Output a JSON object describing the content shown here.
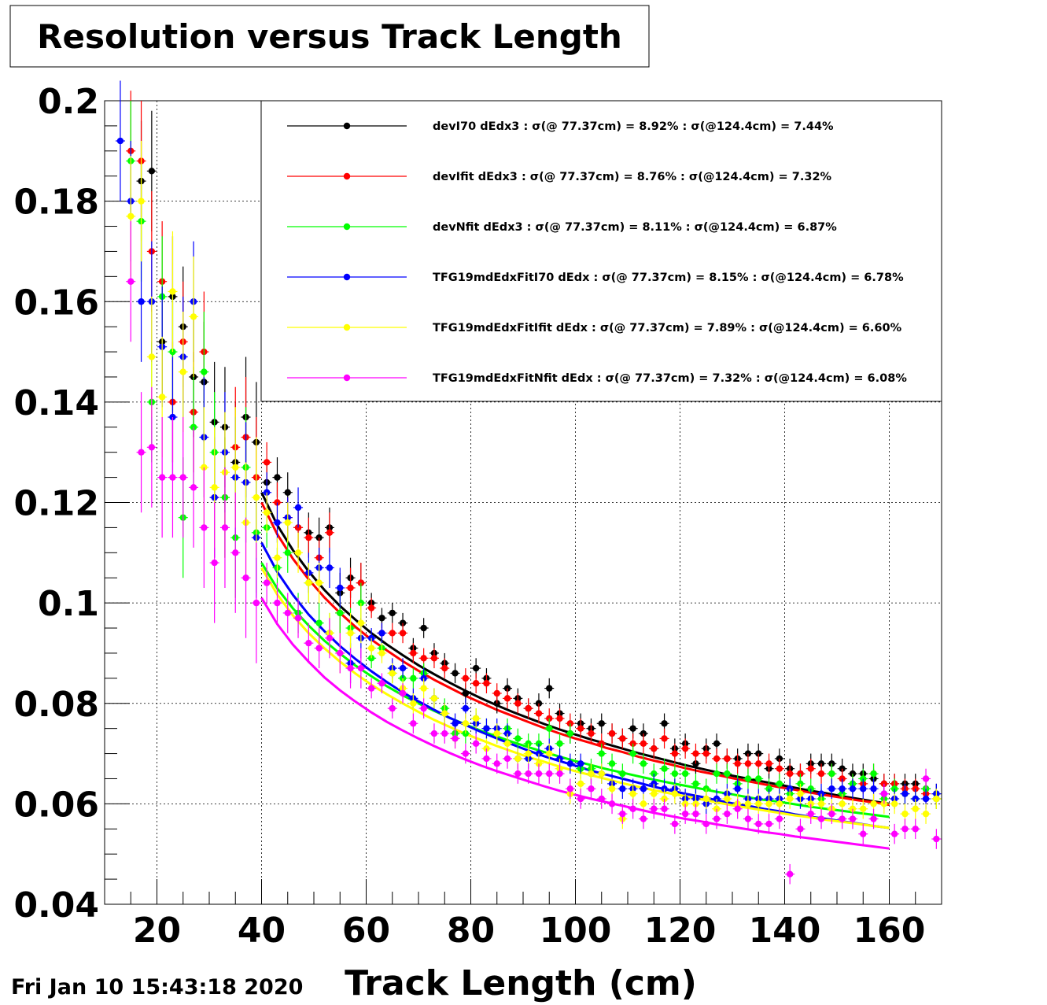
{
  "timestamp": "Fri Jan 10 15:43:18 2020",
  "chart_data": {
    "type": "scatter",
    "title": "Resolution versus Track Length",
    "xlabel": "Track Length (cm)",
    "ylabel": "",
    "xlim": [
      10,
      170
    ],
    "ylim": [
      0.04,
      0.2
    ],
    "xticks": [
      "20",
      "40",
      "60",
      "80",
      "100",
      "120",
      "140",
      "160"
    ],
    "yticks": [
      "0.04",
      "0.06",
      "0.08",
      "0.1",
      "0.12",
      "0.14",
      "0.16",
      "0.18",
      "0.2"
    ],
    "grid": true,
    "legend_position": "top-right",
    "x": [
      13,
      15,
      17,
      19,
      21,
      23,
      25,
      27,
      29,
      31,
      33,
      35,
      37,
      39,
      41,
      43,
      45,
      47,
      49,
      51,
      53,
      55,
      57,
      59,
      61,
      63,
      65,
      67,
      69,
      71,
      73,
      75,
      77,
      79,
      81,
      83,
      85,
      87,
      89,
      91,
      93,
      95,
      97,
      99,
      101,
      103,
      105,
      107,
      109,
      111,
      113,
      115,
      117,
      119,
      121,
      123,
      125,
      127,
      129,
      131,
      133,
      135,
      137,
      139,
      141,
      143,
      145,
      147,
      149,
      151,
      153,
      155,
      157,
      159,
      161,
      163,
      165,
      167,
      169
    ],
    "series": [
      {
        "name": "devI70  dEdx3 : σ(@ 77.37cm) =  8.92% : σ(@124.4cm) =  7.44%",
        "color": "#000000",
        "values": [
          null,
          null,
          0.184,
          0.186,
          0.152,
          0.161,
          0.155,
          0.145,
          0.144,
          0.136,
          0.135,
          0.128,
          0.137,
          0.132,
          0.124,
          0.125,
          0.122,
          0.115,
          0.114,
          0.113,
          0.115,
          0.102,
          0.105,
          0.104,
          0.1,
          0.097,
          0.098,
          0.096,
          0.091,
          0.095,
          0.09,
          0.088,
          0.086,
          0.082,
          0.087,
          0.085,
          0.08,
          0.083,
          0.081,
          0.079,
          0.08,
          0.083,
          0.078,
          0.074,
          0.076,
          0.075,
          0.076,
          0.074,
          0.073,
          0.075,
          0.074,
          0.071,
          0.076,
          0.071,
          0.072,
          0.068,
          0.071,
          0.072,
          0.069,
          0.069,
          0.07,
          0.07,
          0.067,
          0.069,
          0.067,
          0.066,
          0.068,
          0.068,
          0.068,
          0.067,
          0.066,
          0.066,
          0.065,
          0.064,
          0.064,
          0.064,
          0.064,
          0.063,
          0.062
        ],
        "fit": [
          0.122,
          0.1155,
          0.1105,
          0.1063,
          0.1026,
          0.0994,
          0.0966,
          0.094,
          0.0917,
          0.0896,
          0.0876,
          0.0858,
          0.0841,
          0.0825,
          0.081,
          0.0796,
          0.0783,
          0.0771,
          0.0759,
          0.0748,
          0.0738,
          0.0728,
          0.0719,
          0.071,
          0.0701,
          0.0693,
          0.0685,
          0.0677,
          0.067,
          0.0663,
          0.0656,
          0.065,
          0.0644,
          0.0638,
          0.0632,
          0.0626,
          0.0621,
          0.0615,
          0.061,
          0.0605,
          0.06
        ]
      },
      {
        "name": "devIfit dEdx3 : σ(@ 77.37cm) =  8.76% : σ(@124.4cm) =  7.32%",
        "color": "#ff0000",
        "values": [
          null,
          0.19,
          0.188,
          0.17,
          0.164,
          0.14,
          0.152,
          0.138,
          0.15,
          0.121,
          0.121,
          0.131,
          0.133,
          0.125,
          0.128,
          0.12,
          0.117,
          0.115,
          0.113,
          0.109,
          0.114,
          0.098,
          0.103,
          0.104,
          0.099,
          0.094,
          0.094,
          0.094,
          0.09,
          0.089,
          0.089,
          0.087,
          0.074,
          0.085,
          0.084,
          0.084,
          0.082,
          0.081,
          0.08,
          0.079,
          0.078,
          0.077,
          0.077,
          0.076,
          0.075,
          0.074,
          0.072,
          0.074,
          0.073,
          0.072,
          0.072,
          0.071,
          0.073,
          0.07,
          0.071,
          0.07,
          0.07,
          0.069,
          0.069,
          0.068,
          0.068,
          0.068,
          0.068,
          0.067,
          0.066,
          0.066,
          0.067,
          0.066,
          0.066,
          0.065,
          0.064,
          0.064,
          0.066,
          0.064,
          0.064,
          0.063,
          0.063,
          0.062,
          0.061
        ],
        "fit": [
          0.12,
          0.1137,
          0.1088,
          0.1047,
          0.1011,
          0.098,
          0.0952,
          0.0927,
          0.0905,
          0.0884,
          0.0865,
          0.0847,
          0.0831,
          0.0815,
          0.0801,
          0.0787,
          0.0775,
          0.0763,
          0.0751,
          0.074,
          0.073,
          0.0721,
          0.0711,
          0.0703,
          0.0694,
          0.0686,
          0.0679,
          0.0671,
          0.0664,
          0.0658,
          0.0651,
          0.0645,
          0.0639,
          0.0633,
          0.0628,
          0.0622,
          0.0617,
          0.0612,
          0.0607,
          0.0603,
          0.0598
        ]
      },
      {
        "name": "devNfit dEdx3 : σ(@ 77.37cm) =  8.11% : σ(@124.4cm) =  6.87%",
        "color": "#00ff00",
        "values": [
          null,
          0.188,
          0.176,
          0.14,
          0.161,
          0.15,
          0.117,
          0.135,
          0.146,
          0.13,
          0.121,
          0.113,
          0.127,
          0.114,
          0.115,
          0.107,
          0.11,
          0.098,
          0.104,
          0.096,
          0.094,
          0.098,
          0.095,
          0.1,
          0.089,
          0.091,
          0.086,
          0.085,
          0.085,
          0.086,
          0.081,
          0.079,
          0.074,
          0.074,
          0.077,
          0.075,
          0.074,
          0.075,
          0.073,
          0.072,
          0.072,
          0.075,
          0.072,
          0.074,
          0.067,
          0.067,
          0.07,
          0.068,
          0.066,
          0.07,
          0.068,
          0.066,
          0.067,
          0.066,
          0.066,
          0.064,
          0.063,
          0.066,
          0.066,
          0.064,
          0.065,
          0.065,
          0.063,
          0.064,
          0.062,
          0.064,
          0.063,
          0.061,
          0.066,
          0.062,
          0.064,
          0.065,
          0.066,
          0.061,
          0.063,
          0.062,
          0.061,
          0.063,
          0.061
        ],
        "fit": [
          0.108,
          0.1029,
          0.0989,
          0.0955,
          0.0925,
          0.0899,
          0.0875,
          0.0854,
          0.0834,
          0.0816,
          0.08,
          0.0785,
          0.0771,
          0.0758,
          0.0745,
          0.0734,
          0.0723,
          0.0713,
          0.0703,
          0.0694,
          0.0685,
          0.0677,
          0.0669,
          0.0662,
          0.0655,
          0.0648,
          0.0642,
          0.0636,
          0.063,
          0.0624,
          0.0619,
          0.0613,
          0.0608,
          0.0604,
          0.0599,
          0.0594,
          0.059,
          0.0586,
          0.0582,
          0.0578,
          0.0574
        ]
      },
      {
        "name": "TFG19mdEdxFitI70  dEdx : σ(@ 77.37cm) =  8.15% : σ(@124.4cm) =  6.78%",
        "color": "#0000ff",
        "values": [
          0.192,
          0.18,
          0.16,
          0.16,
          0.151,
          0.137,
          0.149,
          0.16,
          0.133,
          0.121,
          0.13,
          0.125,
          0.124,
          0.113,
          0.122,
          0.116,
          0.117,
          0.119,
          0.106,
          0.107,
          0.107,
          0.103,
          0.088,
          0.093,
          0.093,
          0.094,
          0.087,
          0.087,
          0.081,
          0.085,
          0.081,
          0.078,
          0.076,
          0.079,
          0.076,
          0.075,
          0.075,
          0.074,
          0.069,
          0.069,
          0.07,
          0.071,
          0.069,
          0.068,
          0.068,
          0.066,
          0.066,
          0.064,
          0.063,
          0.063,
          0.063,
          0.064,
          0.063,
          0.063,
          0.061,
          0.061,
          0.06,
          0.061,
          0.062,
          0.063,
          0.061,
          0.061,
          0.061,
          0.061,
          0.063,
          0.061,
          0.061,
          0.062,
          0.063,
          0.063,
          0.063,
          0.063,
          0.063,
          0.062,
          0.061,
          0.062,
          0.061,
          0.061,
          0.062
        ],
        "fit": [
          0.112,
          0.1062,
          0.1016,
          0.0977,
          0.0944,
          0.0914,
          0.0888,
          0.0864,
          0.0842,
          0.0822,
          0.0804,
          0.0787,
          0.0771,
          0.0757,
          0.0743,
          0.073,
          0.0718,
          0.0706,
          0.0695,
          0.0685,
          0.0676,
          0.0666,
          0.0658,
          0.065,
          0.0642,
          0.0634,
          0.0627,
          0.062,
          0.0614,
          0.0607,
          0.0601,
          0.0596,
          0.059,
          0.0585,
          0.0579,
          0.0574,
          0.057,
          0.0565,
          0.0561,
          0.0556,
          0.0552
        ]
      },
      {
        "name": "TFG19mdEdxFitIfit dEdx : σ(@ 77.37cm) =  7.89% : σ(@124.4cm) =  6.60%",
        "color": "#ffff00",
        "values": [
          null,
          0.177,
          0.18,
          0.149,
          0.141,
          0.162,
          0.146,
          0.157,
          0.127,
          0.123,
          0.126,
          0.127,
          0.116,
          0.121,
          0.118,
          0.109,
          0.116,
          0.11,
          0.104,
          0.104,
          0.094,
          0.09,
          0.094,
          0.096,
          0.091,
          0.09,
          0.086,
          0.083,
          0.08,
          0.083,
          0.081,
          0.078,
          0.073,
          0.076,
          0.077,
          0.071,
          0.074,
          0.072,
          0.069,
          0.07,
          0.068,
          0.07,
          0.067,
          0.062,
          0.064,
          0.066,
          0.066,
          0.063,
          0.057,
          0.062,
          0.06,
          0.062,
          0.061,
          0.062,
          0.06,
          0.06,
          0.061,
          0.059,
          0.061,
          0.06,
          0.06,
          0.06,
          0.06,
          0.06,
          0.061,
          0.062,
          0.06,
          0.06,
          0.059,
          0.06,
          0.059,
          0.059,
          0.06,
          0.06,
          0.06,
          0.058,
          0.059,
          0.058,
          0.061
        ],
        "fit": [
          0.107,
          0.1017,
          0.0975,
          0.094,
          0.091,
          0.0883,
          0.0859,
          0.0837,
          0.0818,
          0.08,
          0.0783,
          0.0767,
          0.0753,
          0.0739,
          0.0727,
          0.0715,
          0.0704,
          0.0693,
          0.0684,
          0.0674,
          0.0665,
          0.0657,
          0.0649,
          0.0641,
          0.0634,
          0.0627,
          0.0621,
          0.0615,
          0.0609,
          0.0603,
          0.0597,
          0.0592,
          0.0587,
          0.0582,
          0.0577,
          0.0573,
          0.0568,
          0.0564,
          0.056,
          0.0556,
          0.0552
        ]
      },
      {
        "name": "TFG19mdEdxFitNfit dEdx : σ(@ 77.37cm) =  7.32% : σ(@124.4cm) =  6.08%",
        "color": "#ff00ff",
        "values": [
          null,
          0.164,
          0.13,
          0.131,
          0.125,
          0.125,
          0.125,
          0.123,
          0.115,
          0.108,
          0.115,
          0.11,
          0.105,
          0.1,
          0.104,
          0.1,
          0.098,
          0.097,
          0.092,
          0.091,
          0.093,
          0.09,
          0.087,
          0.087,
          0.083,
          0.084,
          0.079,
          0.082,
          0.076,
          0.079,
          0.074,
          0.074,
          0.073,
          0.07,
          0.072,
          0.069,
          0.068,
          0.069,
          0.066,
          0.066,
          0.066,
          0.066,
          0.066,
          0.063,
          0.061,
          0.063,
          0.061,
          0.06,
          0.058,
          0.059,
          0.057,
          0.059,
          0.059,
          0.056,
          0.058,
          0.058,
          0.056,
          0.057,
          0.058,
          0.059,
          0.057,
          0.056,
          0.056,
          0.057,
          0.046,
          0.055,
          0.058,
          0.057,
          0.058,
          0.057,
          0.057,
          0.054,
          0.057,
          0.062,
          0.054,
          0.055,
          0.055,
          0.065,
          0.053
        ],
        "fit": [
          0.101,
          0.0958,
          0.0917,
          0.0883,
          0.0852,
          0.0826,
          0.0803,
          0.0782,
          0.0763,
          0.0746,
          0.073,
          0.0715,
          0.0701,
          0.0688,
          0.0676,
          0.0665,
          0.0655,
          0.0645,
          0.0635,
          0.0626,
          0.0618,
          0.061,
          0.0603,
          0.0596,
          0.0589,
          0.0582,
          0.0576,
          0.057,
          0.0565,
          0.0559,
          0.0554,
          0.0549,
          0.0544,
          0.054,
          0.0535,
          0.0531,
          0.0527,
          0.0523,
          0.0519,
          0.0515,
          0.0511
        ]
      }
    ]
  }
}
